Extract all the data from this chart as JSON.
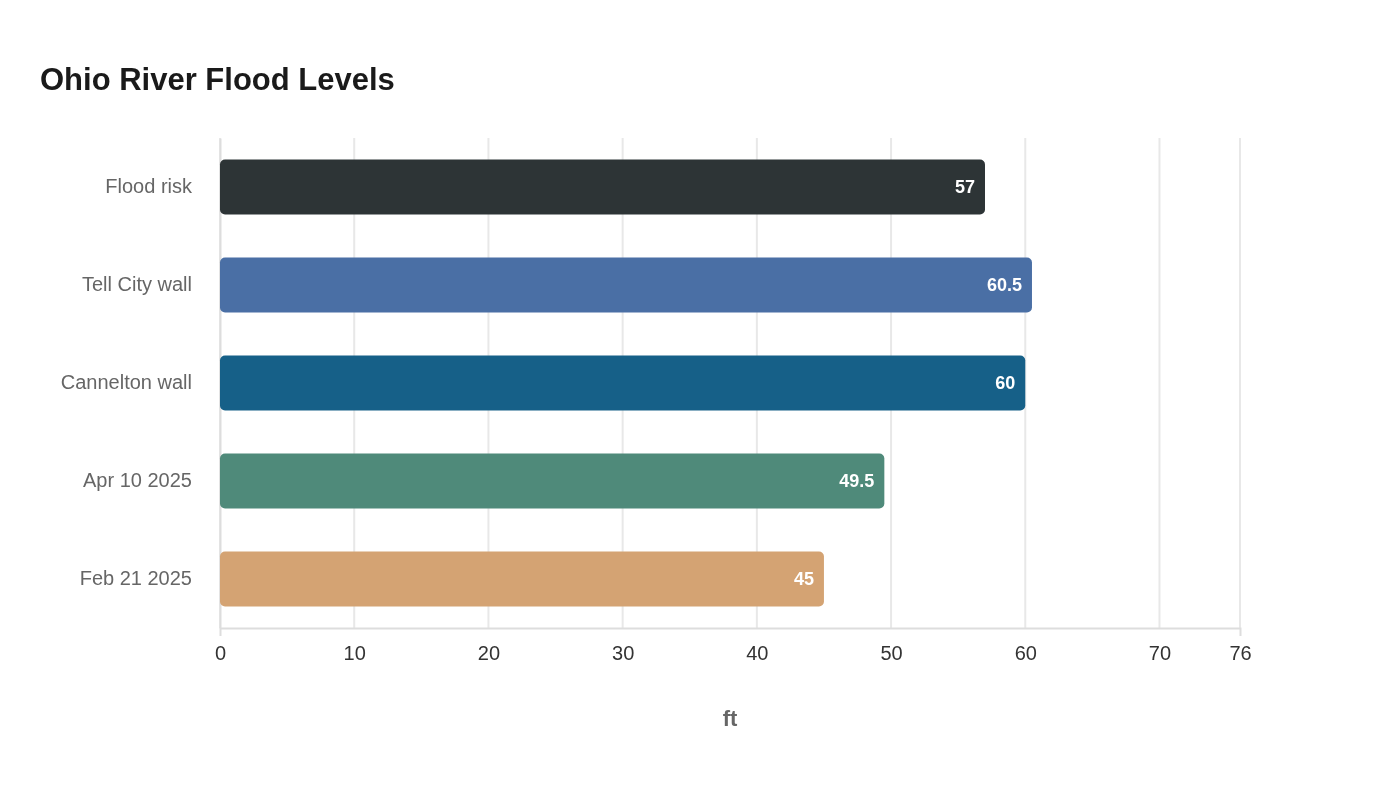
{
  "chart_data": {
    "type": "bar",
    "orientation": "horizontal",
    "title": "Ohio River Flood Levels",
    "xlabel": "ft",
    "categories": [
      "Flood risk",
      "Tell City wall",
      "Cannelton wall",
      "Apr 10 2025",
      "Feb 21 2025"
    ],
    "values": [
      57,
      60.5,
      60,
      49.5,
      45
    ],
    "colors": [
      "#2d3436",
      "#4a6fa5",
      "#166088",
      "#4f8a7a",
      "#d4a373"
    ],
    "xlim": [
      0,
      76
    ],
    "xticks": [
      0,
      10,
      20,
      30,
      40,
      50,
      60,
      70,
      76
    ],
    "grid": "x",
    "data_labels": true
  }
}
